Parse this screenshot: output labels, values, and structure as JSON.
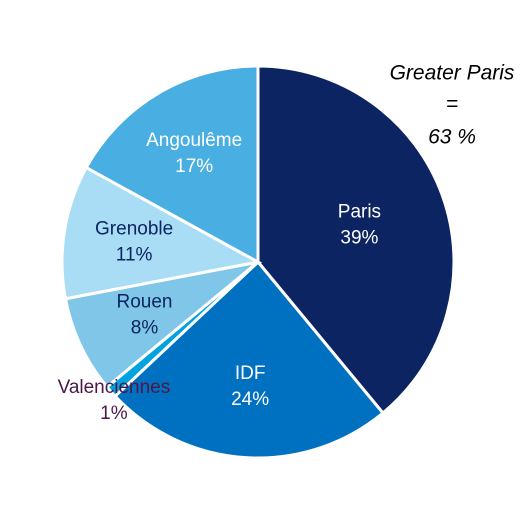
{
  "chart_data": {
    "type": "pie",
    "categories": [
      "Paris",
      "IDF",
      "Valenciennes",
      "Rouen",
      "Grenoble",
      "Angoulême"
    ],
    "values": [
      39,
      24,
      1,
      8,
      11,
      17
    ],
    "value_labels": [
      "39%",
      "24%",
      "1%",
      "8%",
      "11%",
      "17%"
    ],
    "colors": [
      "#0c2461",
      "#0070c0",
      "#00a3e0",
      "#80c6e8",
      "#a9ddf6",
      "#49aee1"
    ],
    "label_colors": [
      "#ffffff",
      "#ffffff",
      "#4b1848",
      "#0c2461",
      "#0c2461",
      "#ffffff"
    ],
    "annotation": [
      "Greater Paris",
      "=",
      "63 %"
    ]
  }
}
